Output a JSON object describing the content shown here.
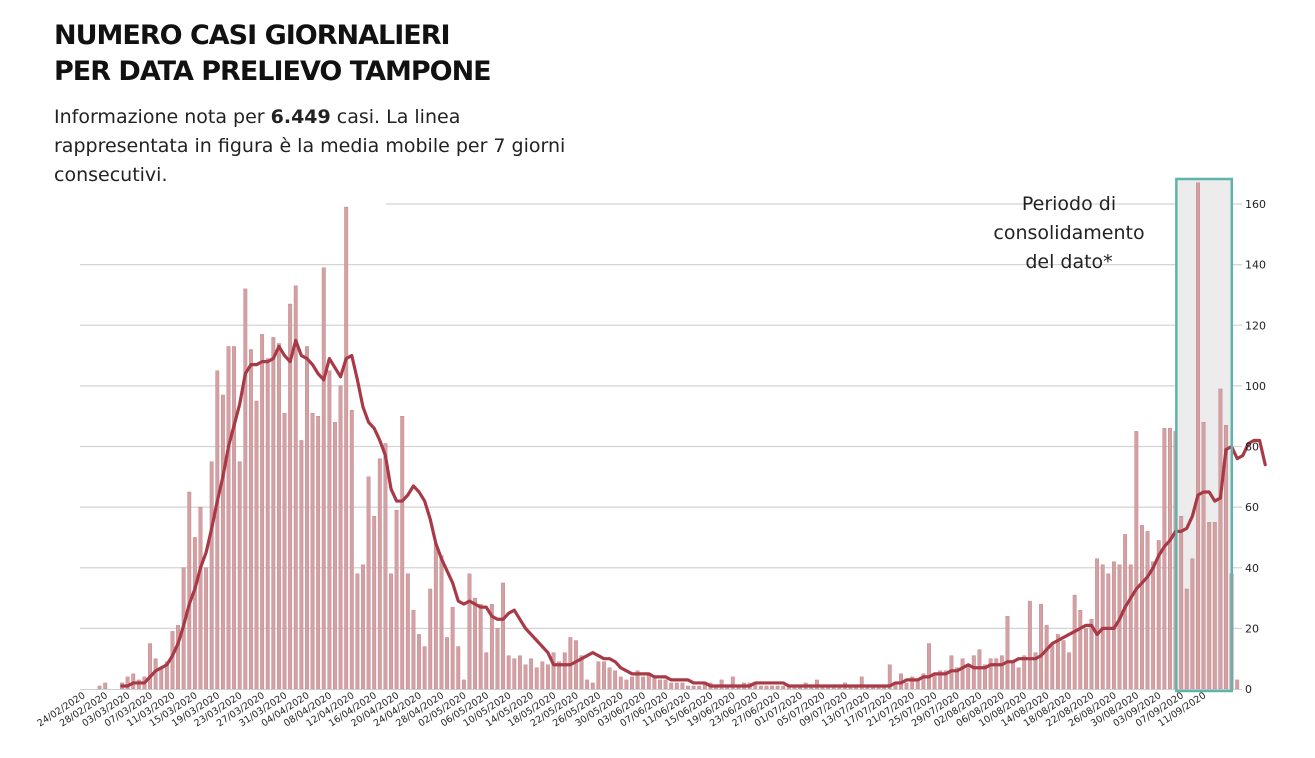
{
  "header": {
    "title_line1": "NUMERO CASI GIORNALIERI",
    "title_line2": "PER DATA PRELIEVO TAMPONE",
    "subtitle_pre": "Informazione nota per ",
    "subtitle_count": "6.449",
    "subtitle_post": "  casi. La linea rappresentata in figura è la media mobile per 7 giorni consecutivi."
  },
  "annotation": {
    "line1": "Periodo di",
    "line2": "consolidamento",
    "line3": "del dato*"
  },
  "colors": {
    "bar": "#d3a1a4",
    "bar_edge": "#c07f84",
    "line": "#a83a47",
    "grid": "#d4d4d4",
    "highlight_border": "#5fb3ad",
    "highlight_fill": "#ececec"
  },
  "chart_data": {
    "type": "bar",
    "secondary_series_type": "line",
    "ylim": [
      0,
      160
    ],
    "yticks": [
      0,
      20,
      40,
      60,
      80,
      100,
      120,
      140,
      160
    ],
    "y_axis_side": "right",
    "grid": true,
    "x_start_date": "2020-02-24",
    "xtick_labels": [
      "24/02/2020",
      "28/02/2020",
      "03/03/2020",
      "07/03/2020",
      "11/03/2020",
      "15/03/2020",
      "19/03/2020",
      "23/03/2020",
      "27/03/2020",
      "31/03/2020",
      "04/04/2020",
      "08/04/2020",
      "12/04/2020",
      "16/04/2020",
      "20/04/2020",
      "24/04/2020",
      "28/04/2020",
      "02/05/2020",
      "06/05/2020",
      "10/05/2020",
      "14/05/2020",
      "18/05/2020",
      "22/05/2020",
      "26/05/2020",
      "30/05/2020",
      "03/06/2020",
      "07/06/2020",
      "11/06/2020",
      "15/06/2020",
      "19/06/2020",
      "23/06/2020",
      "27/06/2020",
      "01/07/2020",
      "05/07/2020",
      "09/07/2020",
      "13/07/2020",
      "17/07/2020",
      "21/07/2020",
      "25/07/2020",
      "29/07/2020",
      "02/08/2020",
      "06/08/2020",
      "10/08/2020",
      "14/08/2020",
      "18/08/2020",
      "22/08/2020",
      "26/08/2020",
      "30/08/2020",
      "03/09/2020",
      "07/09/2020",
      "11/09/2020"
    ],
    "highlight_period": {
      "from": "2020-09-07",
      "to": "2020-09-15"
    },
    "series": [
      {
        "name": "",
        "type": "bar",
        "values": [
          0,
          0,
          0,
          1,
          2,
          0,
          0,
          2,
          4,
          5,
          3,
          4,
          15,
          10,
          7,
          9,
          19,
          21,
          40,
          65,
          50,
          60,
          40,
          75,
          105,
          97,
          113,
          113,
          75,
          132,
          112,
          95,
          117,
          109,
          116,
          114,
          91,
          127,
          133,
          82,
          113,
          91,
          90,
          139,
          105,
          88,
          100,
          159,
          92,
          38,
          41,
          70,
          57,
          76,
          81,
          38,
          59,
          90,
          38,
          26,
          18,
          14,
          33,
          48,
          44,
          17,
          27,
          14,
          3,
          38,
          30,
          28,
          12,
          28,
          20,
          35,
          11,
          10,
          11,
          8,
          10,
          7,
          9,
          8,
          12,
          9,
          12,
          17,
          16,
          11,
          3,
          2,
          9,
          9,
          7,
          6,
          4,
          3,
          4,
          6,
          4,
          5,
          4,
          3,
          3,
          2,
          2,
          2,
          1,
          1,
          1,
          2,
          2,
          1,
          3,
          1,
          4,
          1,
          2,
          2,
          2,
          1,
          1,
          1,
          1,
          1,
          1,
          1,
          1,
          2,
          1,
          3,
          1,
          1,
          1,
          1,
          2,
          1,
          1,
          4,
          1,
          1,
          1,
          1,
          8,
          2,
          5,
          2,
          4,
          3,
          5,
          15,
          5,
          6,
          6,
          11,
          7,
          10,
          8,
          11,
          13,
          8,
          10,
          10,
          11,
          24,
          9,
          7,
          11,
          29,
          12,
          28,
          21,
          15,
          18,
          16,
          12,
          31,
          26,
          20,
          23,
          43,
          41,
          38,
          42,
          41,
          51,
          41,
          85,
          54,
          52,
          42,
          49,
          86,
          86,
          85,
          57,
          33,
          43,
          167,
          88,
          55,
          55,
          99,
          87,
          38,
          3
        ]
      },
      {
        "name": "",
        "type": "line",
        "values": [
          null,
          null,
          null,
          null,
          null,
          null,
          null,
          1,
          1,
          2,
          2,
          2,
          4,
          6,
          7,
          8,
          11,
          15,
          21,
          28,
          33,
          40,
          45,
          53,
          62,
          70,
          80,
          87,
          94,
          104,
          107,
          107,
          108,
          108,
          109,
          113,
          110,
          108,
          115,
          110,
          109,
          107,
          104,
          102,
          109,
          106,
          103,
          109,
          110,
          102,
          93,
          88,
          86,
          82,
          77,
          66,
          62,
          62,
          64,
          67,
          65,
          62,
          56,
          48,
          43,
          39,
          35,
          29,
          28,
          29,
          28,
          27,
          27,
          24,
          23,
          23,
          25,
          26,
          23,
          20,
          18,
          16,
          14,
          12,
          8,
          8,
          8,
          8,
          9,
          10,
          11,
          12,
          11,
          10,
          10,
          9,
          7,
          6,
          5,
          5,
          5,
          5,
          4,
          4,
          4,
          3,
          3,
          3,
          3,
          2,
          2,
          2,
          1,
          1,
          1,
          1,
          1,
          1,
          1,
          1,
          2,
          2,
          2,
          2,
          2,
          2,
          1,
          1,
          1,
          1,
          1,
          1,
          1,
          1,
          1,
          1,
          1,
          1,
          1,
          1,
          1,
          1,
          1,
          1,
          1,
          2,
          2,
          3,
          3,
          3,
          4,
          4,
          5,
          5,
          5,
          6,
          6,
          7,
          8,
          7,
          7,
          7,
          8,
          8,
          8,
          9,
          9,
          10,
          10,
          10,
          10,
          11,
          13,
          15,
          16,
          17,
          18,
          19,
          20,
          21,
          21,
          18,
          20,
          20,
          20,
          23,
          27,
          30,
          33,
          35,
          37,
          40,
          44,
          47,
          49,
          52,
          52,
          53,
          57,
          64,
          65,
          65,
          62,
          63,
          79,
          80,
          76,
          77,
          81,
          82,
          82,
          74
        ]
      }
    ]
  }
}
